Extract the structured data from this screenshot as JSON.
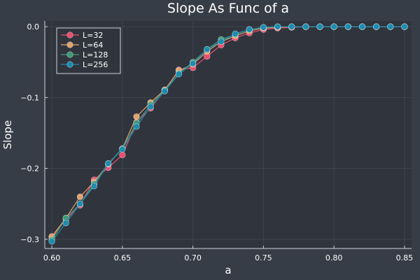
{
  "chart_data": {
    "type": "line",
    "title": "Slope As Func of a",
    "xlabel": "a",
    "ylabel": "Slope",
    "xlim": [
      0.595,
      0.855
    ],
    "ylim": [
      -0.313,
      0.008
    ],
    "xticks": [
      0.6,
      0.65,
      0.7,
      0.75,
      0.8,
      0.85
    ],
    "xtick_labels": [
      "0.60",
      "0.65",
      "0.70",
      "0.75",
      "0.80",
      "0.85"
    ],
    "yticks": [
      0.0,
      -0.1,
      -0.2,
      -0.3
    ],
    "ytick_labels": [
      "0.0",
      "−0.1",
      "−0.2",
      "−0.3"
    ],
    "grid": true,
    "legend_position": "top-left",
    "x": [
      0.6,
      0.61,
      0.62,
      0.63,
      0.64,
      0.65,
      0.66,
      0.67,
      0.68,
      0.69,
      0.7,
      0.71,
      0.72,
      0.73,
      0.74,
      0.75,
      0.76,
      0.77,
      0.78,
      0.79,
      0.8,
      0.81,
      0.82,
      0.83,
      0.84,
      0.85
    ],
    "series": [
      {
        "name": "L=32",
        "color": "#e8506f",
        "values": [
          -0.298,
          -0.272,
          -0.252,
          -0.216,
          -0.199,
          -0.181,
          -0.135,
          -0.115,
          -0.09,
          -0.061,
          -0.058,
          -0.042,
          -0.026,
          -0.016,
          -0.009,
          -0.004,
          -0.002,
          -0.001,
          0.0,
          0.0,
          0.0,
          0.0,
          0.0,
          0.0,
          0.0,
          0.0
        ]
      },
      {
        "name": "L=64",
        "color": "#e0a26e",
        "values": [
          -0.296,
          -0.27,
          -0.24,
          -0.219,
          -0.194,
          -0.172,
          -0.127,
          -0.107,
          -0.089,
          -0.062,
          -0.053,
          -0.035,
          -0.021,
          -0.013,
          -0.006,
          -0.002,
          -0.001,
          0.0,
          0.0,
          0.0,
          0.0,
          0.0,
          0.0,
          0.0,
          0.0,
          0.0
        ]
      },
      {
        "name": "L=128",
        "color": "#3f9a79",
        "values": [
          -0.301,
          -0.27,
          -0.25,
          -0.222,
          -0.193,
          -0.172,
          -0.136,
          -0.11,
          -0.09,
          -0.066,
          -0.05,
          -0.032,
          -0.018,
          -0.011,
          -0.004,
          -0.001,
          0.0,
          0.0,
          0.0,
          0.0,
          0.0,
          0.0,
          0.0,
          0.0,
          0.0,
          0.0
        ]
      },
      {
        "name": "L=256",
        "color": "#1d8cae",
        "values": [
          -0.303,
          -0.277,
          -0.25,
          -0.225,
          -0.193,
          -0.173,
          -0.141,
          -0.113,
          -0.091,
          -0.067,
          -0.052,
          -0.032,
          -0.021,
          -0.01,
          -0.004,
          -0.001,
          0.0,
          0.0,
          0.0,
          0.0,
          0.0,
          0.0,
          0.0,
          0.0,
          0.0,
          0.0
        ]
      }
    ]
  }
}
